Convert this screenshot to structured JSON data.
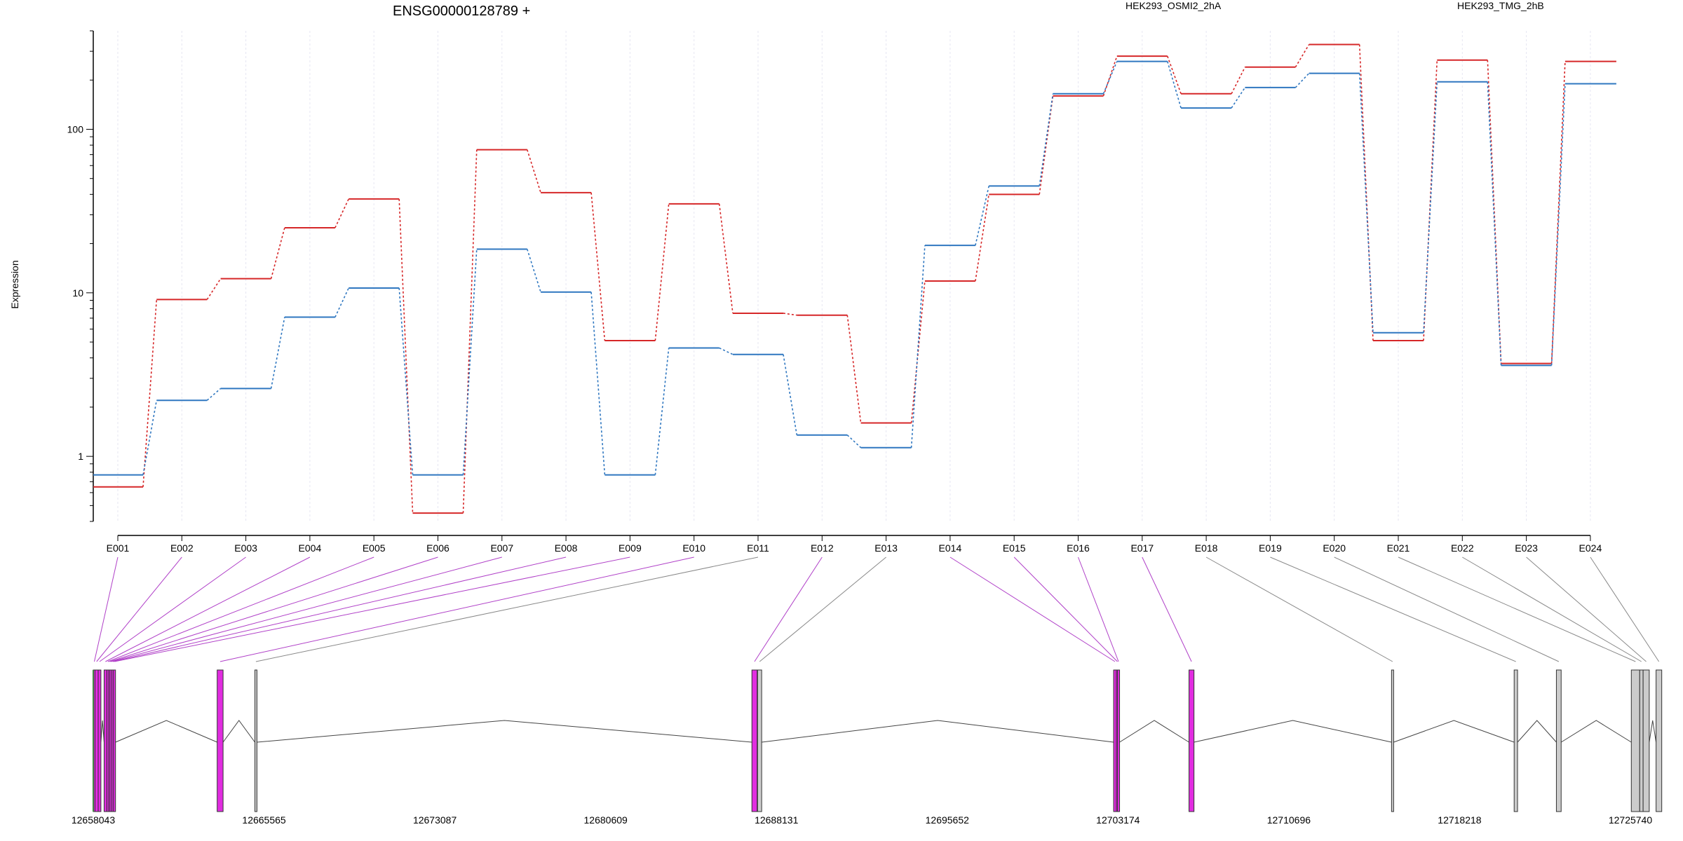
{
  "chart_data": {
    "type": "line",
    "title": "ENSG00000128789 +",
    "ylabel": "Expression",
    "yscale": "log",
    "ylim": [
      0.4,
      400
    ],
    "y_ticks": [
      "1",
      "10",
      "100"
    ],
    "grid": "vertical dotted",
    "legend_position": "top",
    "categories": [
      "E001",
      "E002",
      "E003",
      "E004",
      "E005",
      "E006",
      "E007",
      "E008",
      "E009",
      "E010",
      "E011",
      "E012",
      "E013",
      "E014",
      "E015",
      "E016",
      "E017",
      "E018",
      "E019",
      "E020",
      "E021",
      "E022",
      "E023",
      "E024"
    ],
    "series": [
      {
        "name": "HEK293_OSMI2_2hA",
        "color": "#d62728",
        "values": [
          0.65,
          9.1,
          12.2,
          25,
          37.5,
          0.45,
          75,
          41,
          5.1,
          35,
          7.5,
          7.3,
          1.6,
          11.8,
          40,
          160,
          280,
          165,
          240,
          330,
          5.1,
          265,
          3.7,
          260
        ]
      },
      {
        "name": "HEK293_TMG_2hB",
        "color": "#2f77c0",
        "values": [
          0.77,
          2.2,
          2.6,
          7.1,
          10.7,
          0.77,
          18.5,
          10.1,
          0.77,
          4.6,
          4.2,
          1.35,
          1.13,
          19.5,
          45,
          165,
          260,
          135,
          180,
          220,
          5.7,
          195,
          3.6,
          190
        ]
      }
    ],
    "genomic_axis": {
      "tick_labels": [
        "12658043",
        "12665565",
        "12673087",
        "12680609",
        "12688131",
        "12695652",
        "12703174",
        "12710696",
        "12718218",
        "12725740"
      ],
      "start": 12658043,
      "end": 12725740
    },
    "exons": [
      {
        "id": "E001",
        "start": 12658043,
        "end": 12658120,
        "color": "#e12ce0"
      },
      {
        "id": "E002",
        "start": 12658120,
        "end": 12658260,
        "color": "#e12ce0"
      },
      {
        "id": "E003",
        "start": 12658260,
        "end": 12658380,
        "color": "#e12ce0"
      },
      {
        "id": "E004",
        "start": 12658520,
        "end": 12658640,
        "color": "#e12ce0"
      },
      {
        "id": "E005",
        "start": 12658640,
        "end": 12658720,
        "color": "#e12ce0"
      },
      {
        "id": "E006",
        "start": 12658720,
        "end": 12658780,
        "color": "#e12ce0"
      },
      {
        "id": "E007",
        "start": 12658780,
        "end": 12658860,
        "color": "#e12ce0"
      },
      {
        "id": "E008",
        "start": 12658860,
        "end": 12658930,
        "color": "#e12ce0"
      },
      {
        "id": "E009",
        "start": 12658930,
        "end": 12659000,
        "color": "#e12ce0"
      },
      {
        "id": "E010",
        "start": 12663500,
        "end": 12663760,
        "color": "#e12ce0"
      },
      {
        "id": "E011",
        "start": 12665160,
        "end": 12665240,
        "color": "#cccccc"
      },
      {
        "id": "E012",
        "start": 12687050,
        "end": 12687280,
        "color": "#e12ce0"
      },
      {
        "id": "E013",
        "start": 12687300,
        "end": 12687480,
        "color": "#cccccc"
      },
      {
        "id": "E014",
        "start": 12702980,
        "end": 12703100,
        "color": "#e12ce0"
      },
      {
        "id": "E015",
        "start": 12703100,
        "end": 12703150,
        "color": "#e12ce0"
      },
      {
        "id": "E016",
        "start": 12703150,
        "end": 12703200,
        "color": "#e12ce0"
      },
      {
        "id": "E017",
        "start": 12706300,
        "end": 12706520,
        "color": "#e12ce0"
      },
      {
        "id": "E018",
        "start": 12715220,
        "end": 12715270,
        "color": "#cccccc"
      },
      {
        "id": "E019",
        "start": 12720620,
        "end": 12720770,
        "color": "#cccccc"
      },
      {
        "id": "E020",
        "start": 12722480,
        "end": 12722690,
        "color": "#cccccc"
      },
      {
        "id": "E021",
        "start": 12725780,
        "end": 12726150,
        "color": "#cccccc"
      },
      {
        "id": "E022",
        "start": 12726150,
        "end": 12726300,
        "color": "#cccccc"
      },
      {
        "id": "E023",
        "start": 12726300,
        "end": 12726570,
        "color": "#cccccc"
      },
      {
        "id": "E024",
        "start": 12726870,
        "end": 12727120,
        "color": "#cccccc"
      }
    ]
  }
}
